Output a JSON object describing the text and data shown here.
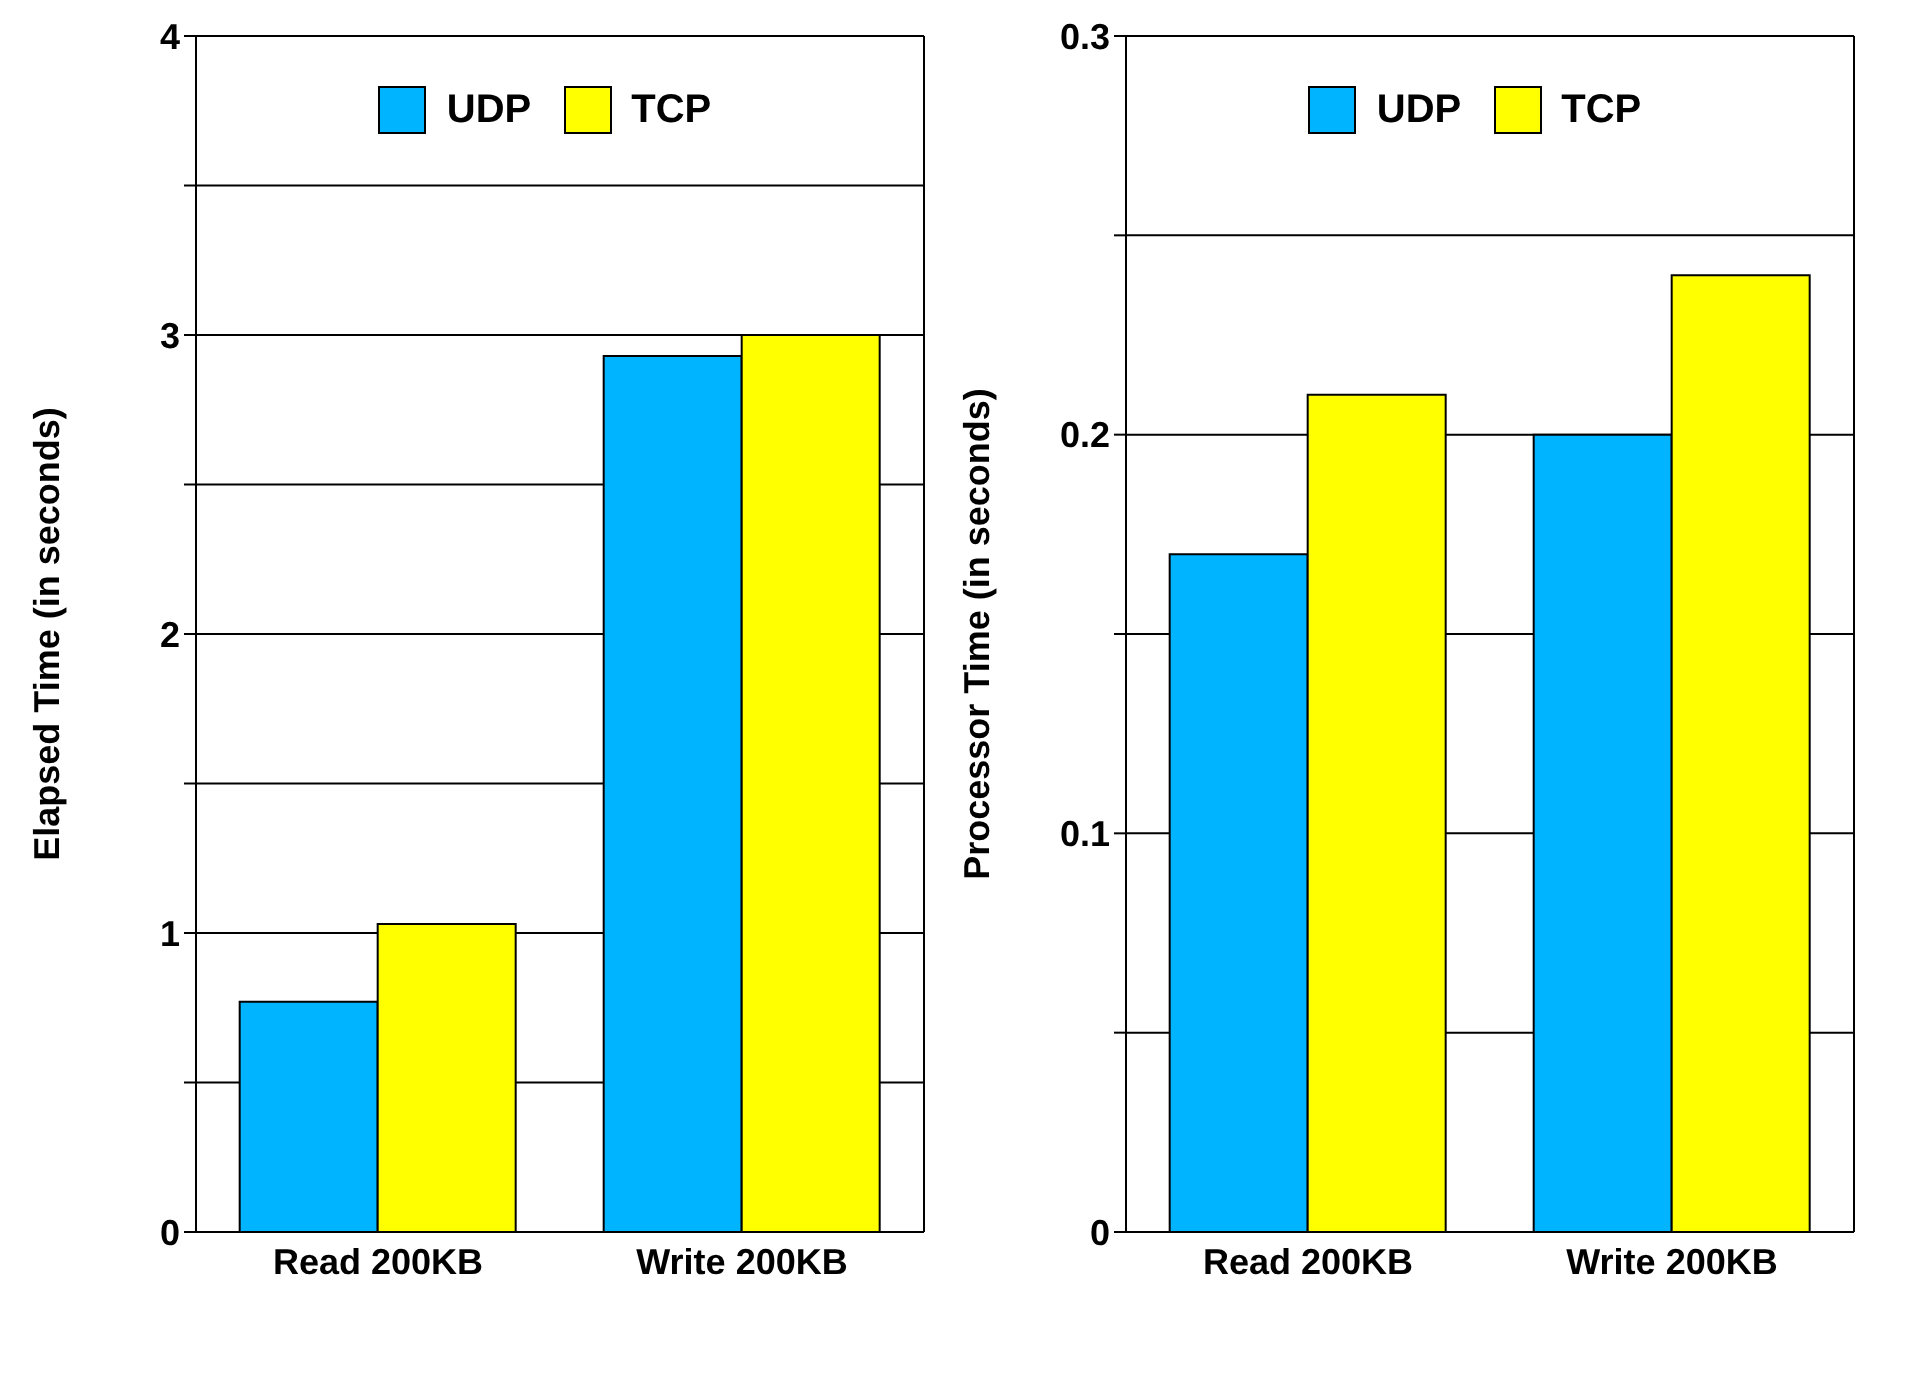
{
  "chart_data": [
    {
      "type": "bar",
      "ylabel": "Elapsed Time (in seconds)",
      "categories": [
        "Read 200KB",
        "Write 200KB"
      ],
      "series": [
        {
          "name": "UDP",
          "color": "#00b4ff",
          "values": [
            0.77,
            2.93
          ]
        },
        {
          "name": "TCP",
          "color": "#ffff00",
          "values": [
            1.03,
            3.0
          ]
        }
      ],
      "ylim": [
        0,
        4
      ],
      "yticks": [
        0,
        {
          "value": 0.5,
          "label": null
        },
        1,
        {
          "value": 1.5,
          "label": null
        },
        2,
        {
          "value": 2.5,
          "label": null
        },
        3,
        {
          "value": 3.5,
          "label": null
        },
        4
      ],
      "grid": "y",
      "legend": "top"
    },
    {
      "type": "bar",
      "ylabel": "Processor Time (in seconds)",
      "categories": [
        "Read 200KB",
        "Write 200KB"
      ],
      "series": [
        {
          "name": "UDP",
          "color": "#00b4ff",
          "values": [
            0.17,
            0.2
          ]
        },
        {
          "name": "TCP",
          "color": "#ffff00",
          "values": [
            0.21,
            0.24
          ]
        }
      ],
      "ylim": [
        0,
        0.3
      ],
      "yticks": [
        0,
        {
          "value": 0.05,
          "label": null
        },
        0.1,
        {
          "value": 0.15,
          "label": null
        },
        0.2,
        {
          "value": 0.25,
          "label": null
        },
        0.3
      ],
      "grid": "y",
      "legend": "top"
    }
  ]
}
